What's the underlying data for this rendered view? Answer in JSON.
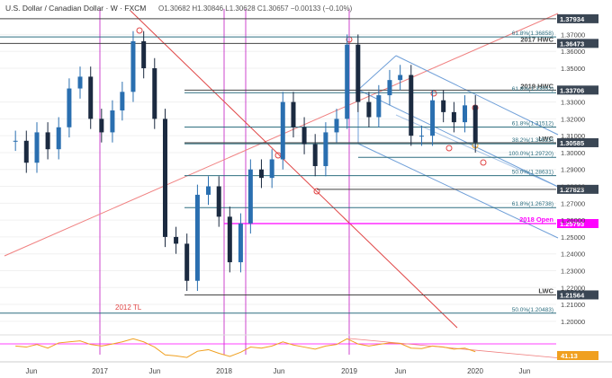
{
  "header": {
    "symbol": "U.S. Dollar / Canadian Dollar",
    "interval": "W",
    "source": "FXCM",
    "ohlc": "O1.30682 H1.30846 L1.30628 C1.30657 −0.00133 (−0.10%)"
  },
  "colors": {
    "price_line_main": "#222222",
    "up_candle": "#2a6fb0",
    "down_candle": "#1b2a40",
    "fib_line": "#2e6f80",
    "pitchfork": "#6f9fd8",
    "magenta": "#ff00ff",
    "trend_red": "#e04545",
    "purple_vline": "#cc44cc",
    "indicator": "#f0a020"
  },
  "chart_data": {
    "type": "candlestick",
    "ylim": [
      1.193,
      1.383
    ],
    "xlim": [
      "2016-04",
      "2020-08"
    ],
    "x_tick_labels": [
      "Jun",
      "2017",
      "Jun",
      "2018",
      "Jun",
      "2019",
      "Jun",
      "2020",
      "Jun"
    ],
    "y_tick_labels": [
      "1.37000",
      "1.36000",
      "1.35000",
      "1.33000",
      "1.32000",
      "1.31000",
      "1.30000",
      "1.29000",
      "1.28000",
      "1.27000",
      "1.26000",
      "1.25000",
      "1.24000",
      "1.23000",
      "1.22000",
      "1.21000",
      "1.20000"
    ],
    "price_series": {
      "dates": [
        "2016-05",
        "2016-06",
        "2016-07",
        "2016-08",
        "2016-09",
        "2016-10",
        "2016-11",
        "2016-12",
        "2017-01",
        "2017-02",
        "2017-03",
        "2017-04",
        "2017-05",
        "2017-06",
        "2017-07",
        "2017-08",
        "2017-09",
        "2017-10",
        "2017-11",
        "2017-12",
        "2018-01",
        "2018-02",
        "2018-03",
        "2018-04",
        "2018-05",
        "2018-06",
        "2018-07",
        "2018-08",
        "2018-09",
        "2018-10",
        "2018-11",
        "2018-12",
        "2019-01",
        "2019-02",
        "2019-03",
        "2019-04",
        "2019-05",
        "2019-06",
        "2019-07",
        "2019-08",
        "2019-09",
        "2019-10",
        "2019-11",
        "2019-12"
      ],
      "close": [
        1.307,
        1.294,
        1.312,
        1.302,
        1.315,
        1.338,
        1.345,
        1.32,
        1.312,
        1.325,
        1.336,
        1.366,
        1.35,
        1.32,
        1.25,
        1.246,
        1.224,
        1.275,
        1.28,
        1.262,
        1.235,
        1.258,
        1.29,
        1.285,
        1.296,
        1.33,
        1.315,
        1.305,
        1.292,
        1.312,
        1.32,
        1.364,
        1.33,
        1.321,
        1.334,
        1.343,
        1.346,
        1.31,
        1.31,
        1.331,
        1.324,
        1.318,
        1.328,
        1.306
      ]
    },
    "horizontal_levels": [
      {
        "label": "1.37934",
        "value": 1.37934
      },
      {
        "label": "2017 HWC",
        "value": 1.36473,
        "axis_label": "1.36473"
      },
      {
        "label": "61.8%(1.36858)",
        "value": 1.36858
      },
      {
        "label": "2019 HWC",
        "value": 1.33706,
        "axis_label": "1.33706"
      },
      {
        "label": "61.8%(1.33552)",
        "value": 1.33552
      },
      {
        "label": "61.8%(1.31512)",
        "value": 1.31512
      },
      {
        "label": "LWC",
        "value": 1.30585,
        "axis_label": "1.30585"
      },
      {
        "label": "38.2%(1.30523)",
        "value": 1.30523
      },
      {
        "label": "100.0%(1.29720)",
        "value": 1.2972
      },
      {
        "label": "50.0%(1.28631)",
        "value": 1.28631
      },
      {
        "label": "1.27823",
        "value": 1.27823
      },
      {
        "label": "61.8%(1.26738)",
        "value": 1.26738
      },
      {
        "label": "2018 Open",
        "value": 1.25793,
        "axis_label": "1.25793"
      },
      {
        "label": "LWC",
        "value": 1.21564,
        "axis_label": "1.21564"
      },
      {
        "label": "50.0%(1.20483)",
        "value": 1.20483
      }
    ],
    "annotations": [
      "2012 TL"
    ],
    "indicator": {
      "value_label": "41.13",
      "values": [
        52,
        50,
        55,
        48,
        58,
        60,
        62,
        55,
        52,
        56,
        60,
        66,
        60,
        50,
        35,
        33,
        30,
        42,
        45,
        38,
        32,
        40,
        50,
        48,
        52,
        60,
        54,
        50,
        46,
        52,
        55,
        66,
        56,
        52,
        55,
        58,
        57,
        48,
        47,
        52,
        50,
        46,
        48,
        41
      ]
    }
  }
}
